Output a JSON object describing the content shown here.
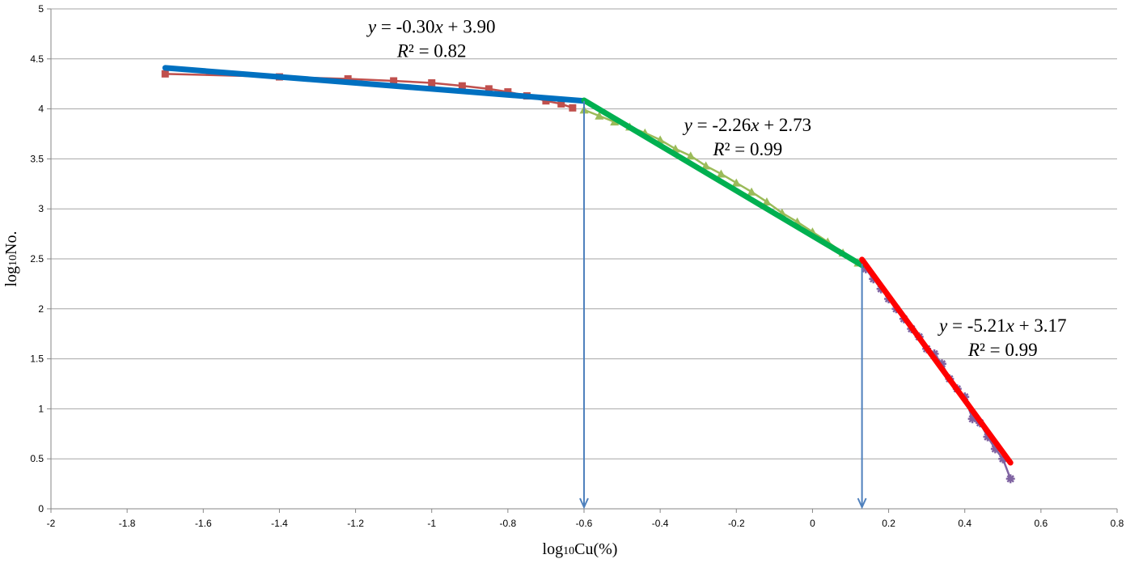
{
  "chart_data": {
    "type": "scatter",
    "title": "",
    "xlabel": "log10Cu(%)",
    "xlabel_parts": [
      "log",
      "10",
      "Cu(%)"
    ],
    "ylabel": "log10No.",
    "ylabel_parts": [
      "log",
      "10",
      "No."
    ],
    "xlim": [
      -2,
      0.8
    ],
    "ylim": [
      0,
      5
    ],
    "x_ticks": [
      -2,
      -1.8,
      -1.6,
      -1.4,
      -1.2,
      -1,
      -0.8,
      -0.6,
      -0.4,
      -0.2,
      0,
      0.2,
      0.4,
      0.6,
      0.8
    ],
    "x_tick_labels": [
      "-2",
      "-1.8",
      "-1.6",
      "-1.4",
      "-1.2",
      "-1",
      "-0.8",
      "-0.6",
      "-0.4",
      "-0.2",
      "0",
      "0.2",
      "0.4",
      "0.6",
      "0.8"
    ],
    "y_ticks": [
      0,
      0.5,
      1,
      1.5,
      2,
      2.5,
      3,
      3.5,
      4,
      4.5,
      5
    ],
    "y_tick_labels": [
      "0",
      "0.5",
      "1",
      "1.5",
      "2",
      "2.5",
      "3",
      "3.5",
      "4",
      "4.5",
      "5"
    ],
    "grid": "horizontal",
    "legend": "none",
    "series": [
      {
        "marker": "square",
        "color": "#C0504D",
        "points": [
          [
            -1.7,
            4.35
          ],
          [
            -1.4,
            4.32
          ],
          [
            -1.22,
            4.3
          ],
          [
            -1.1,
            4.28
          ],
          [
            -1.0,
            4.26
          ],
          [
            -0.92,
            4.23
          ],
          [
            -0.85,
            4.2
          ],
          [
            -0.8,
            4.17
          ],
          [
            -0.75,
            4.13
          ],
          [
            -0.7,
            4.08
          ],
          [
            -0.66,
            4.05
          ],
          [
            -0.63,
            4.01
          ]
        ]
      },
      {
        "marker": "triangle",
        "color": "#9BBB59",
        "points": [
          [
            -0.6,
            3.99
          ],
          [
            -0.56,
            3.93
          ],
          [
            -0.52,
            3.87
          ],
          [
            -0.48,
            3.82
          ],
          [
            -0.44,
            3.76
          ],
          [
            -0.4,
            3.69
          ],
          [
            -0.36,
            3.6
          ],
          [
            -0.32,
            3.53
          ],
          [
            -0.28,
            3.43
          ],
          [
            -0.24,
            3.35
          ],
          [
            -0.2,
            3.26
          ],
          [
            -0.16,
            3.17
          ],
          [
            -0.12,
            3.07
          ],
          [
            -0.08,
            2.96
          ],
          [
            -0.04,
            2.87
          ],
          [
            0.0,
            2.77
          ],
          [
            0.04,
            2.67
          ],
          [
            0.08,
            2.56
          ],
          [
            0.12,
            2.46
          ]
        ]
      },
      {
        "marker": "star",
        "color": "#8064A2",
        "points": [
          [
            0.14,
            2.4
          ],
          [
            0.16,
            2.3
          ],
          [
            0.18,
            2.2
          ],
          [
            0.2,
            2.1
          ],
          [
            0.22,
            2.0
          ],
          [
            0.24,
            1.9
          ],
          [
            0.26,
            1.8
          ],
          [
            0.28,
            1.72
          ],
          [
            0.3,
            1.6
          ],
          [
            0.32,
            1.55
          ],
          [
            0.34,
            1.45
          ],
          [
            0.36,
            1.3
          ],
          [
            0.38,
            1.2
          ],
          [
            0.4,
            1.12
          ],
          [
            0.42,
            0.9
          ],
          [
            0.44,
            0.86
          ],
          [
            0.46,
            0.72
          ],
          [
            0.48,
            0.6
          ],
          [
            0.5,
            0.5
          ],
          [
            0.52,
            0.3
          ]
        ]
      }
    ],
    "fit_lines": [
      {
        "color": "#0070C0",
        "x": [
          -1.7,
          -0.6
        ],
        "y": [
          4.41,
          4.08
        ]
      },
      {
        "color": "#00B050",
        "x": [
          -0.6,
          0.13
        ],
        "y": [
          4.086,
          2.436
        ]
      },
      {
        "color": "#FF0000",
        "x": [
          0.13,
          0.52
        ],
        "y": [
          2.493,
          0.461
        ]
      }
    ],
    "vertical_arrows": [
      {
        "color": "#4F81BD",
        "x": -0.6,
        "y_from": 4.08,
        "y_to": 0
      },
      {
        "color": "#4F81BD",
        "x": 0.13,
        "y_from": 2.45,
        "y_to": 0
      }
    ],
    "annotations": [
      {
        "equation_parts": [
          "y",
          " = -0.30",
          "x",
          " + 3.90"
        ],
        "r2_parts": [
          "R",
          "²",
          " = 0.82"
        ],
        "x": -1.0,
        "y": 4.76
      },
      {
        "equation_parts": [
          "y",
          " = -2.26",
          "x",
          " + 2.73"
        ],
        "r2_parts": [
          "R",
          "²",
          " = 0.99"
        ],
        "x": -0.17,
        "y": 3.78
      },
      {
        "equation_parts": [
          "y",
          " = -5.21",
          "x",
          " + 3.17"
        ],
        "r2_parts": [
          "R",
          "²",
          " = 0.99"
        ],
        "x": 0.5,
        "y": 1.77
      }
    ]
  }
}
